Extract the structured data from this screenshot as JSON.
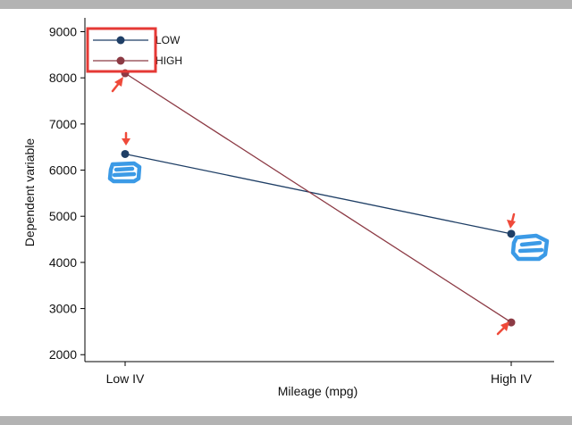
{
  "chart_data": {
    "type": "line",
    "title": "",
    "xlabel": "Mileage (mpg)",
    "ylabel": "Dependent variable",
    "categories": [
      "Low IV",
      "High IV"
    ],
    "ylim": [
      1850,
      9300
    ],
    "yticks": [
      "2000",
      "3000",
      "4000",
      "5000",
      "6000",
      "7000",
      "8000",
      "9000"
    ],
    "series": [
      {
        "name": "LOW",
        "values": [
          6350,
          4620
        ],
        "color": "#1f3f66"
      },
      {
        "name": "HIGH",
        "values": [
          8100,
          2700
        ],
        "color": "#8c3a44"
      }
    ],
    "grid": false,
    "legend_position": "top-left",
    "annotations": {
      "legend_box_color": "#e53935",
      "arrow_color": "#ef4a3a",
      "scribble_color": "#3b9ae6"
    }
  }
}
